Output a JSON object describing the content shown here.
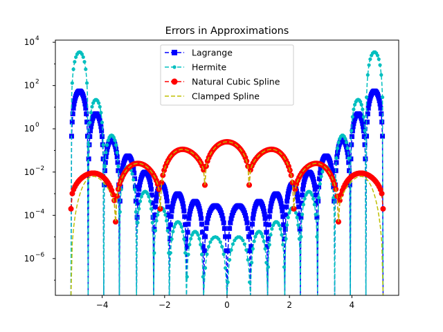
{
  "chart_data": {
    "type": "line",
    "title": "Errors in Approximations",
    "xlabel": "",
    "ylabel": "",
    "x_range": [
      -5.5,
      5.5
    ],
    "y_range_log10": [
      -7.7,
      4.1
    ],
    "yscale": "log",
    "grid": false,
    "legend_position": "upper-center",
    "x_ticks": [
      -4,
      -2,
      0,
      2,
      4
    ],
    "x_tick_labels": [
      "−4",
      "−2",
      "0",
      "2",
      "4"
    ],
    "y_ticks_log10": [
      -6,
      -4,
      -2,
      0,
      2,
      4
    ],
    "y_tick_base": "10",
    "y_tick_exponents": [
      "−6",
      "−4",
      "−2",
      "0",
      "2",
      "4"
    ],
    "series": [
      {
        "name": "Lagrange",
        "color": "#0000ff",
        "linestyle": "dashed",
        "marker": "square",
        "hump_peaks_log10": [
          1.75,
          0.7,
          -0.5,
          -1.25,
          -2.0,
          -2.55,
          -3.0,
          -3.35,
          -3.55,
          -3.55,
          -3.35,
          -3.0,
          -2.55,
          -2.0,
          -1.25,
          -0.5,
          0.7,
          1.75
        ],
        "zeros_x": [
          -5,
          -4.45,
          -3.95,
          -3.45,
          -2.9,
          -2.35,
          -1.85,
          -1.3,
          -0.75,
          0,
          0.75,
          1.3,
          1.85,
          2.35,
          2.9,
          3.45,
          3.95,
          4.45,
          5
        ],
        "node_floor_log10": -7.7
      },
      {
        "name": "Hermite",
        "color": "#00bfbf",
        "linestyle": "dashed",
        "marker": "dot",
        "hump_peaks_log10": [
          3.55,
          1.35,
          -0.3,
          -1.75,
          -2.9,
          -3.65,
          -4.3,
          -4.75,
          -5.0,
          -5.0,
          -4.75,
          -4.3,
          -3.65,
          -2.9,
          -1.75,
          -0.3,
          1.35,
          3.55
        ],
        "zeros_x": [
          -5,
          -4.45,
          -3.95,
          -3.45,
          -2.9,
          -2.35,
          -1.85,
          -1.3,
          -0.75,
          0,
          0.75,
          1.3,
          1.85,
          2.35,
          2.9,
          3.45,
          3.95,
          4.45,
          5
        ],
        "node_floor_log10": -7.7
      },
      {
        "name": "Natural Cubic Spline",
        "color": "#ff0000",
        "linestyle": "dashed",
        "marker": "circle",
        "knots_x": [
          -5,
          -3.57,
          -2.14,
          -0.71,
          0.71,
          2.14,
          3.57,
          5
        ],
        "knot_values_log10": [
          -3.7,
          -4.3,
          -3.7,
          -2.6,
          -2.6,
          -3.7,
          -4.3,
          -3.7
        ],
        "arc_peaks_log10": [
          -2.05,
          -1.6,
          -0.95,
          -0.6,
          -0.95,
          -1.6,
          -2.05
        ]
      },
      {
        "name": "Clamped Spline",
        "color": "#bfbf00",
        "linestyle": "dashed",
        "marker": "none",
        "knots_x": [
          -5,
          -3.57,
          -2.14,
          -0.71,
          0.71,
          2.14,
          3.57,
          5
        ],
        "knot_values_log10": [
          -7.7,
          -4.3,
          -3.7,
          -2.6,
          -2.6,
          -3.7,
          -4.3,
          -7.7
        ],
        "arc_peaks_log10": [
          -2.2,
          -1.6,
          -0.95,
          -0.6,
          -0.95,
          -1.6,
          -2.2
        ]
      }
    ]
  }
}
